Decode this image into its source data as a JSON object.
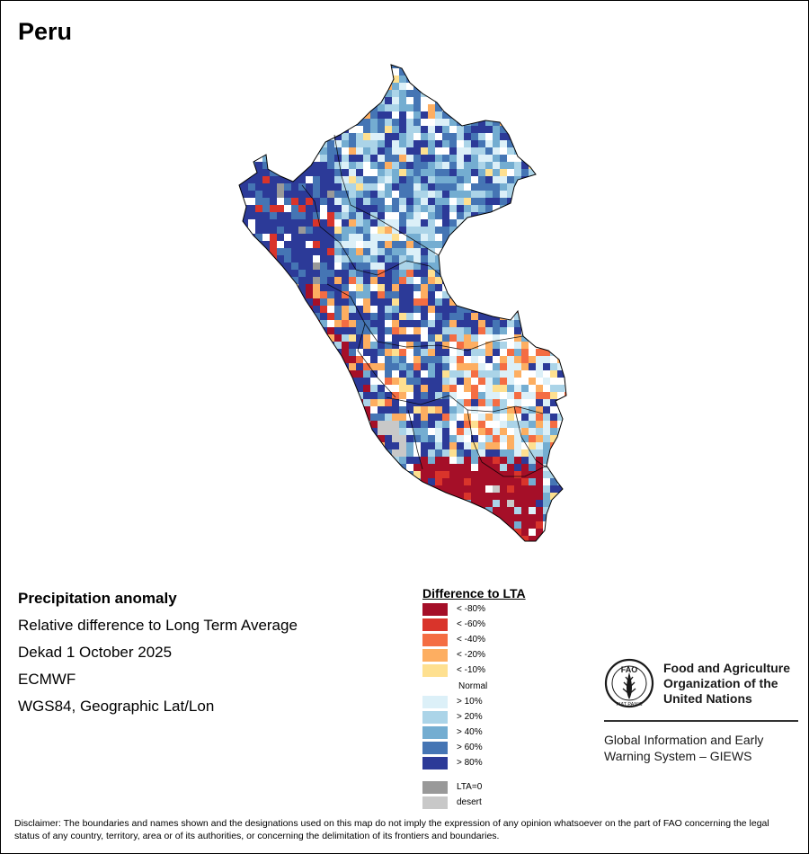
{
  "title": "Peru",
  "meta": {
    "heading": "Precipitation anomaly",
    "subtitle": "Relative difference to Long Term Average",
    "period": "Dekad 1 October 2025",
    "source": "ECMWF",
    "projection": "WGS84, Geographic Lat/Lon"
  },
  "legend": {
    "title": "Difference to LTA",
    "dry": [
      {
        "label": "< -80%",
        "color": "#a50f28"
      },
      {
        "label": "< -60%",
        "color": "#d9342b"
      },
      {
        "label": "< -40%",
        "color": "#f46d43"
      },
      {
        "label": "< -20%",
        "color": "#fdae61"
      },
      {
        "label": "< -10%",
        "color": "#fee090"
      }
    ],
    "normal_label": "Normal",
    "wet": [
      {
        "label": "> 10%",
        "color": "#dcf0f8"
      },
      {
        "label": "> 20%",
        "color": "#abd4e8"
      },
      {
        "label": "> 40%",
        "color": "#74add1"
      },
      {
        "label": "> 60%",
        "color": "#4575b4"
      },
      {
        "label": "> 80%",
        "color": "#2c3a98"
      }
    ],
    "special": [
      {
        "label": "LTA=0",
        "color": "#999999"
      },
      {
        "label": "desert",
        "color": "#c8c8c8"
      }
    ]
  },
  "org": {
    "name_lines": [
      "Food and Agriculture",
      "Organization of the",
      "United Nations"
    ],
    "emblem_text": "FAO",
    "emblem_motto": "FIAT PANIS",
    "system_lines": [
      "Global Information and Early",
      "Warning System – GIEWS"
    ]
  },
  "disclaimer": "Disclaimer: The boundaries and names shown and the designations used on this map do not imply the expression of any opinion whatsoever on the part of FAO concerning the legal status of any country, territory, area or of its authorities, or concerning the delimitation of its frontiers and boundaries."
}
